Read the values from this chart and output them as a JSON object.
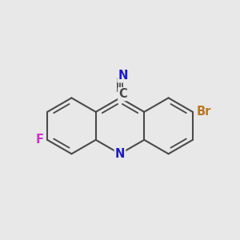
{
  "background_color": "#e8e8e8",
  "bond_color": "#4a4a4a",
  "bond_width": 1.5,
  "atom_colors": {
    "N_ring": "#1a1acc",
    "N_cn": "#1a1acc",
    "F": "#cc33cc",
    "Br": "#bb7722",
    "C": "#4a4a4a"
  },
  "font_size_atom": 10.5
}
